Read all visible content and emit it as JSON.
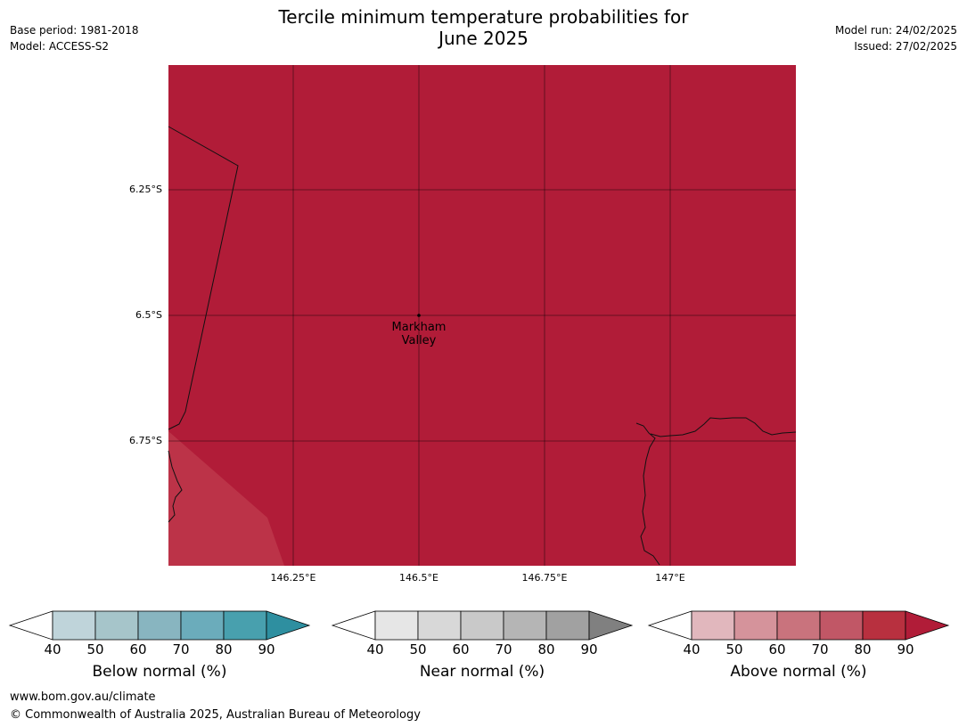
{
  "title_line1": "Tercile minimum temperature probabilities for",
  "title_line2": "June 2025",
  "base_period": "Base period: 1981-2018",
  "model": "Model: ACCESS-S2",
  "model_run": "Model run: 24/02/2025",
  "issued": "Issued: 27/02/2025",
  "map": {
    "lat_labels": [
      "6.25°S",
      "6.5°S",
      "6.75°S"
    ],
    "lon_labels": [
      "146.25°E",
      "146.5°E",
      "146.75°E",
      "147°E"
    ],
    "place": {
      "name_line1": "Markham",
      "name_line2": "Valley",
      "lon": 146.5,
      "lat": -6.5
    },
    "dominant_fill": "#b11c38",
    "secondary_fill": "#bc3348"
  },
  "colorbars": [
    {
      "label": "Below normal (%)",
      "ticks": [
        "40",
        "50",
        "60",
        "70",
        "80",
        "90"
      ],
      "colors": [
        "#ffffff",
        "#bfd4da",
        "#a6c5ca",
        "#88b5c0",
        "#6bacbb",
        "#48a0ae",
        "#2e8fa0"
      ]
    },
    {
      "label": "Near normal (%)",
      "ticks": [
        "40",
        "50",
        "60",
        "70",
        "80",
        "90"
      ],
      "colors": [
        "#ffffff",
        "#e6e6e6",
        "#d8d8d8",
        "#c9c9c9",
        "#b5b5b5",
        "#a1a1a1",
        "#808080"
      ]
    },
    {
      "label": "Above normal (%)",
      "ticks": [
        "40",
        "50",
        "60",
        "70",
        "80",
        "90"
      ],
      "colors": [
        "#ffffff",
        "#e1b7bd",
        "#d5939b",
        "#c9737d",
        "#c15766",
        "#b8303f",
        "#b11c38"
      ]
    }
  ],
  "footer_url": "www.bom.gov.au/climate",
  "footer_copyright": "© Commonwealth of Australia 2025, Australian Bureau of Meteorology"
}
